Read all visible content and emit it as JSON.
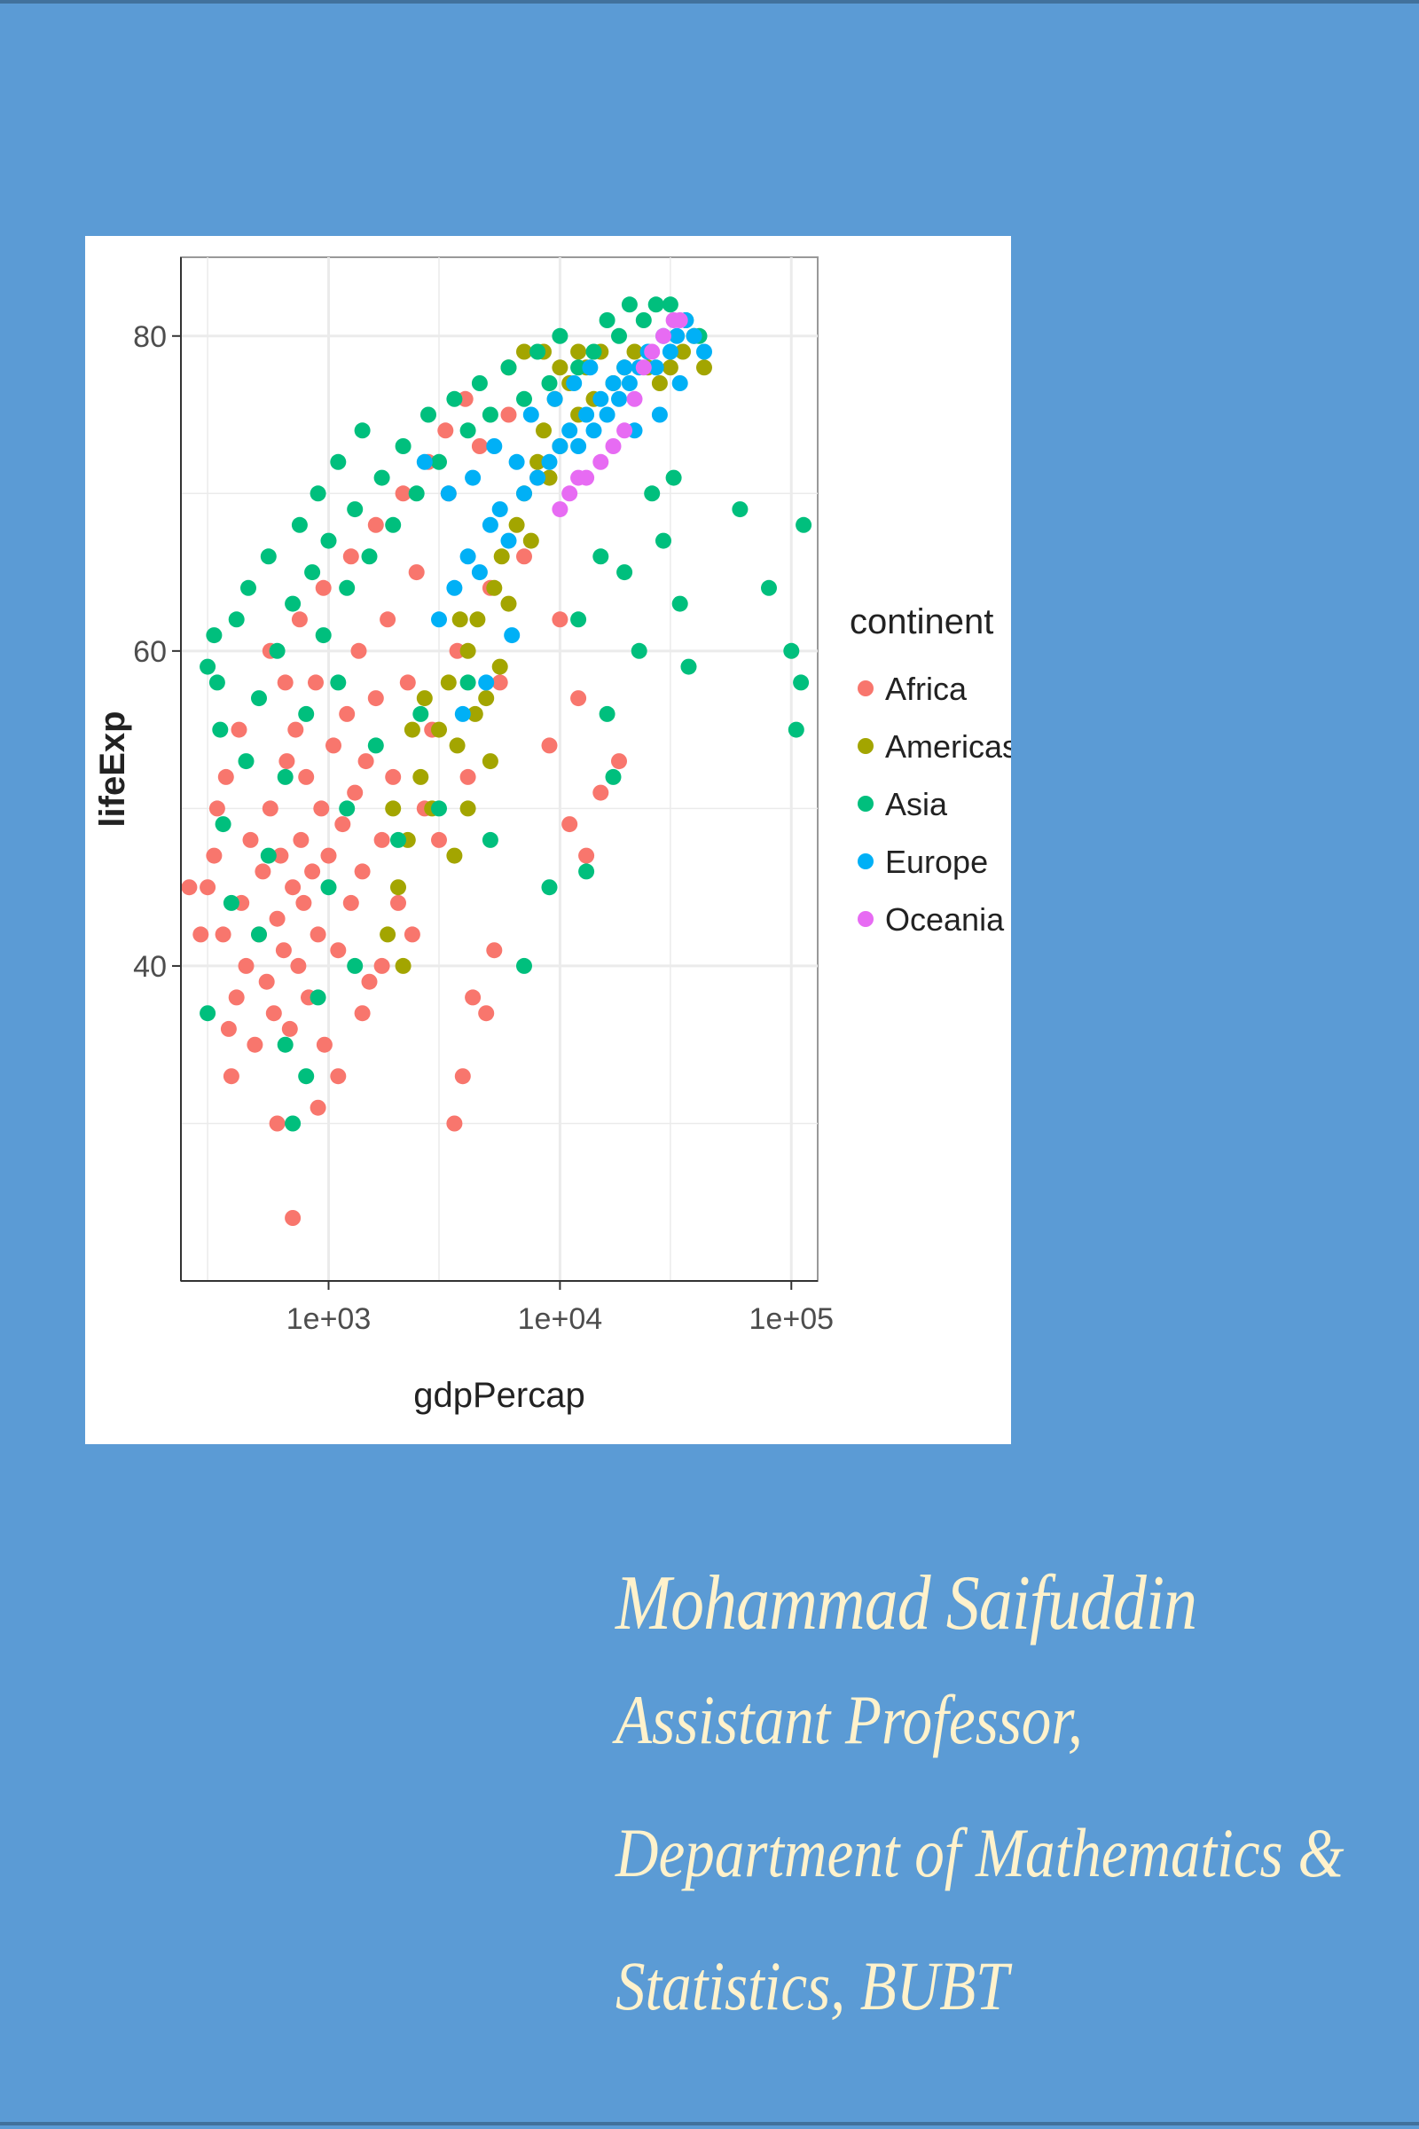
{
  "colors": {
    "background": "#5b9bd5",
    "caption_text": "#fff2cc",
    "panel": "#ffffff",
    "grid": "#ebebeb",
    "axis_text": "#4d4d4d"
  },
  "chart_data": {
    "type": "scatter",
    "title": "",
    "xlabel": "gdpPercap",
    "ylabel": "lifeExp",
    "x_scale": "log10",
    "xlim": [
      230,
      130000
    ],
    "ylim": [
      20,
      85
    ],
    "x_ticks": [
      {
        "value": 1000,
        "label": "1e+03"
      },
      {
        "value": 10000,
        "label": "1e+04"
      },
      {
        "value": 100000,
        "label": "1e+05"
      }
    ],
    "y_ticks": [
      {
        "value": 40,
        "label": "40"
      },
      {
        "value": 60,
        "label": "60"
      },
      {
        "value": 80,
        "label": "80"
      }
    ],
    "grid": true,
    "legend": {
      "title": "continent",
      "position": "right"
    },
    "series": [
      {
        "name": "Africa",
        "color": "#f8766d",
        "points": [
          [
            300,
            45
          ],
          [
            320,
            47
          ],
          [
            350,
            42
          ],
          [
            370,
            36
          ],
          [
            380,
            33
          ],
          [
            400,
            38
          ],
          [
            420,
            44
          ],
          [
            440,
            40
          ],
          [
            460,
            48
          ],
          [
            480,
            35
          ],
          [
            500,
            42
          ],
          [
            520,
            46
          ],
          [
            540,
            39
          ],
          [
            560,
            50
          ],
          [
            580,
            37
          ],
          [
            600,
            43
          ],
          [
            620,
            47
          ],
          [
            640,
            41
          ],
          [
            660,
            53
          ],
          [
            680,
            36
          ],
          [
            700,
            45
          ],
          [
            720,
            55
          ],
          [
            740,
            40
          ],
          [
            760,
            48
          ],
          [
            780,
            44
          ],
          [
            800,
            52
          ],
          [
            820,
            38
          ],
          [
            850,
            46
          ],
          [
            880,
            58
          ],
          [
            900,
            42
          ],
          [
            930,
            50
          ],
          [
            960,
            35
          ],
          [
            1000,
            47
          ],
          [
            1050,
            54
          ],
          [
            1100,
            41
          ],
          [
            1150,
            49
          ],
          [
            1200,
            56
          ],
          [
            1250,
            44
          ],
          [
            1300,
            51
          ],
          [
            1350,
            60
          ],
          [
            1400,
            46
          ],
          [
            1450,
            53
          ],
          [
            1500,
            39
          ],
          [
            1600,
            57
          ],
          [
            1700,
            48
          ],
          [
            1800,
            62
          ],
          [
            1900,
            52
          ],
          [
            2000,
            44
          ],
          [
            2200,
            58
          ],
          [
            2400,
            65
          ],
          [
            2600,
            50
          ],
          [
            2800,
            55
          ],
          [
            3000,
            48
          ],
          [
            3300,
            70
          ],
          [
            3600,
            60
          ],
          [
            4000,
            52
          ],
          [
            4500,
            73
          ],
          [
            5000,
            64
          ],
          [
            5500,
            58
          ],
          [
            6000,
            75
          ],
          [
            7000,
            66
          ],
          [
            8000,
            71
          ],
          [
            9000,
            54
          ],
          [
            10000,
            62
          ],
          [
            11000,
            49
          ],
          [
            12000,
            57
          ],
          [
            13000,
            47
          ],
          [
            15000,
            51
          ],
          [
            18000,
            53
          ],
          [
            700,
            24
          ],
          [
            900,
            31
          ],
          [
            1100,
            33
          ],
          [
            600,
            30
          ],
          [
            3500,
            30
          ],
          [
            3800,
            33
          ],
          [
            4200,
            38
          ],
          [
            4800,
            37
          ],
          [
            5200,
            41
          ],
          [
            250,
            45
          ],
          [
            280,
            42
          ],
          [
            330,
            50
          ],
          [
            360,
            52
          ],
          [
            410,
            55
          ],
          [
            560,
            60
          ],
          [
            650,
            58
          ],
          [
            750,
            62
          ],
          [
            950,
            64
          ],
          [
            1250,
            66
          ],
          [
            1600,
            68
          ],
          [
            2100,
            70
          ],
          [
            2700,
            72
          ],
          [
            3200,
            74
          ],
          [
            3900,
            76
          ],
          [
            2300,
            42
          ],
          [
            1700,
            40
          ],
          [
            1400,
            37
          ]
        ]
      },
      {
        "name": "Americas",
        "color": "#a3a500",
        "points": [
          [
            2000,
            45
          ],
          [
            2200,
            48
          ],
          [
            2500,
            52
          ],
          [
            2800,
            50
          ],
          [
            3000,
            55
          ],
          [
            3300,
            58
          ],
          [
            3600,
            54
          ],
          [
            4000,
            60
          ],
          [
            4400,
            62
          ],
          [
            4800,
            57
          ],
          [
            5200,
            64
          ],
          [
            5600,
            66
          ],
          [
            6000,
            63
          ],
          [
            6500,
            68
          ],
          [
            7000,
            70
          ],
          [
            7500,
            67
          ],
          [
            8000,
            72
          ],
          [
            8500,
            74
          ],
          [
            9000,
            71
          ],
          [
            9500,
            76
          ],
          [
            10000,
            73
          ],
          [
            11000,
            77
          ],
          [
            12000,
            75
          ],
          [
            13000,
            78
          ],
          [
            14000,
            76
          ],
          [
            15000,
            79
          ],
          [
            17000,
            77
          ],
          [
            19000,
            78
          ],
          [
            21000,
            79
          ],
          [
            24000,
            78
          ],
          [
            27000,
            77
          ],
          [
            30000,
            78
          ],
          [
            34000,
            79
          ],
          [
            38000,
            80
          ],
          [
            42000,
            78
          ],
          [
            6000,
            78
          ],
          [
            7000,
            79
          ],
          [
            8500,
            79
          ],
          [
            10000,
            78
          ],
          [
            12000,
            79
          ],
          [
            3500,
            47
          ],
          [
            4000,
            50
          ],
          [
            5000,
            53
          ],
          [
            5500,
            59
          ],
          [
            4300,
            56
          ],
          [
            3700,
            62
          ],
          [
            2600,
            57
          ],
          [
            2300,
            55
          ],
          [
            1900,
            50
          ],
          [
            1800,
            42
          ],
          [
            2100,
            40
          ]
        ]
      },
      {
        "name": "Asia",
        "color": "#00bf7d",
        "points": [
          [
            300,
            59
          ],
          [
            320,
            61
          ],
          [
            330,
            58
          ],
          [
            340,
            55
          ],
          [
            350,
            49
          ],
          [
            380,
            44
          ],
          [
            400,
            62
          ],
          [
            450,
            64
          ],
          [
            500,
            57
          ],
          [
            550,
            66
          ],
          [
            600,
            60
          ],
          [
            650,
            52
          ],
          [
            700,
            63
          ],
          [
            750,
            68
          ],
          [
            800,
            56
          ],
          [
            850,
            65
          ],
          [
            900,
            70
          ],
          [
            950,
            61
          ],
          [
            1000,
            67
          ],
          [
            1100,
            72
          ],
          [
            1200,
            64
          ],
          [
            1300,
            69
          ],
          [
            1400,
            74
          ],
          [
            1500,
            66
          ],
          [
            1700,
            71
          ],
          [
            1900,
            68
          ],
          [
            2100,
            73
          ],
          [
            2400,
            70
          ],
          [
            2700,
            75
          ],
          [
            3000,
            72
          ],
          [
            3500,
            76
          ],
          [
            4000,
            74
          ],
          [
            4500,
            77
          ],
          [
            5000,
            75
          ],
          [
            6000,
            78
          ],
          [
            7000,
            76
          ],
          [
            8000,
            79
          ],
          [
            9000,
            77
          ],
          [
            10000,
            80
          ],
          [
            12000,
            78
          ],
          [
            14000,
            79
          ],
          [
            16000,
            81
          ],
          [
            18000,
            80
          ],
          [
            20000,
            82
          ],
          [
            23000,
            81
          ],
          [
            26000,
            82
          ],
          [
            30000,
            82
          ],
          [
            35000,
            81
          ],
          [
            40000,
            80
          ],
          [
            60000,
            69
          ],
          [
            80000,
            64
          ],
          [
            100000,
            60
          ],
          [
            110000,
            58
          ],
          [
            113000,
            68
          ],
          [
            105000,
            55
          ],
          [
            33000,
            63
          ],
          [
            36000,
            59
          ],
          [
            28000,
            67
          ],
          [
            22000,
            60
          ],
          [
            16000,
            56
          ],
          [
            12000,
            62
          ],
          [
            9000,
            45
          ],
          [
            7000,
            40
          ],
          [
            5000,
            48
          ],
          [
            4000,
            58
          ],
          [
            3000,
            50
          ],
          [
            2500,
            56
          ],
          [
            2000,
            48
          ],
          [
            1600,
            54
          ],
          [
            1300,
            40
          ],
          [
            1100,
            58
          ],
          [
            900,
            38
          ],
          [
            700,
            30
          ],
          [
            650,
            35
          ],
          [
            800,
            33
          ],
          [
            1000,
            45
          ],
          [
            1200,
            50
          ],
          [
            300,
            37
          ],
          [
            500,
            42
          ],
          [
            550,
            47
          ],
          [
            440,
            53
          ],
          [
            13000,
            46
          ],
          [
            17000,
            52
          ],
          [
            15000,
            66
          ],
          [
            19000,
            65
          ],
          [
            25000,
            70
          ],
          [
            31000,
            71
          ]
        ]
      },
      {
        "name": "Europe",
        "color": "#00b0f6",
        "points": [
          [
            3000,
            62
          ],
          [
            3500,
            64
          ],
          [
            4000,
            66
          ],
          [
            4500,
            65
          ],
          [
            5000,
            68
          ],
          [
            5500,
            69
          ],
          [
            6000,
            67
          ],
          [
            7000,
            70
          ],
          [
            8000,
            71
          ],
          [
            9000,
            72
          ],
          [
            10000,
            73
          ],
          [
            11000,
            74
          ],
          [
            12000,
            73
          ],
          [
            13000,
            75
          ],
          [
            14000,
            74
          ],
          [
            15000,
            76
          ],
          [
            16000,
            75
          ],
          [
            17000,
            77
          ],
          [
            18000,
            76
          ],
          [
            19000,
            78
          ],
          [
            20000,
            77
          ],
          [
            22000,
            78
          ],
          [
            24000,
            79
          ],
          [
            26000,
            78
          ],
          [
            28000,
            80
          ],
          [
            30000,
            79
          ],
          [
            32000,
            80
          ],
          [
            35000,
            81
          ],
          [
            38000,
            80
          ],
          [
            42000,
            79
          ],
          [
            4200,
            71
          ],
          [
            5200,
            73
          ],
          [
            6500,
            72
          ],
          [
            7500,
            75
          ],
          [
            9500,
            76
          ],
          [
            11500,
            77
          ],
          [
            13500,
            78
          ],
          [
            4800,
            58
          ],
          [
            3800,
            56
          ],
          [
            6200,
            61
          ],
          [
            2600,
            72
          ],
          [
            3300,
            70
          ],
          [
            27000,
            75
          ],
          [
            33000,
            77
          ],
          [
            21000,
            74
          ]
        ]
      },
      {
        "name": "Oceania",
        "color": "#e76bf3",
        "points": [
          [
            10000,
            69
          ],
          [
            11000,
            70
          ],
          [
            12000,
            71
          ],
          [
            13000,
            71
          ],
          [
            15000,
            72
          ],
          [
            17000,
            73
          ],
          [
            19000,
            74
          ],
          [
            21000,
            76
          ],
          [
            23000,
            78
          ],
          [
            25000,
            79
          ],
          [
            28000,
            80
          ],
          [
            31000,
            81
          ],
          [
            33000,
            81
          ]
        ]
      }
    ]
  },
  "caption": {
    "name": "Mohammad Saifuddin",
    "line1": "Assistant Professor,",
    "line2": "Department of Mathematics &",
    "line3": "Statistics, BUBT"
  }
}
